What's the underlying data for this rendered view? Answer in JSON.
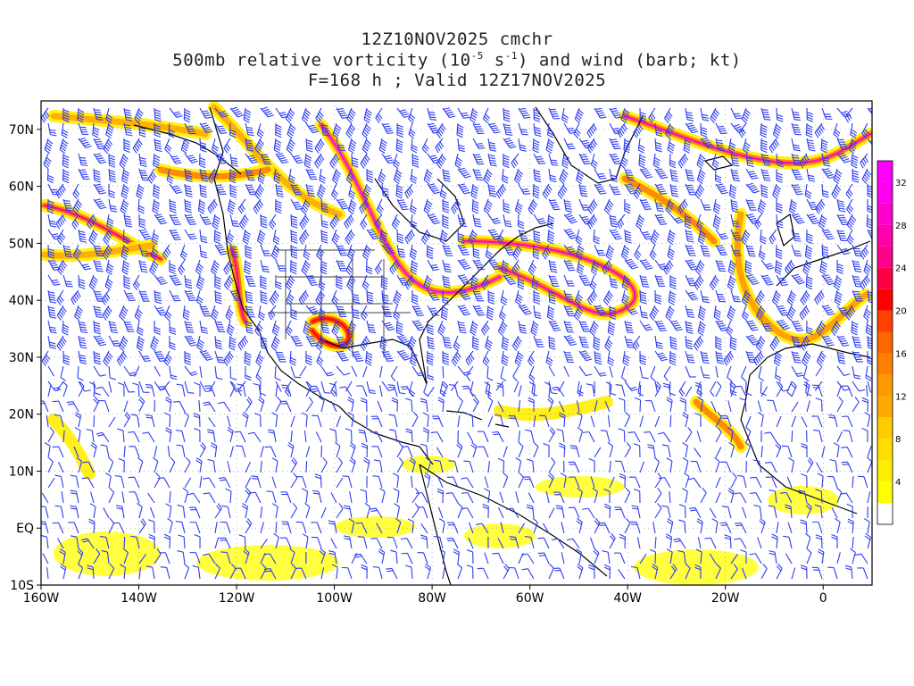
{
  "title": {
    "line1": "12Z10NOV2025 cmchr",
    "line2_pre": "500mb relative vorticity (10",
    "line2_exp1": "-5",
    "line2_mid": " s",
    "line2_exp2": "-1",
    "line2_post": ") and wind (barb; kt)",
    "line3": "F=168 h ; Valid 12Z17NOV2025"
  },
  "map": {
    "lon_range": [
      -160,
      10
    ],
    "lat_range": [
      -10,
      75
    ],
    "lat_ticks": [
      {
        "lat": 70,
        "label": "70N"
      },
      {
        "lat": 60,
        "label": "60N"
      },
      {
        "lat": 50,
        "label": "50N"
      },
      {
        "lat": 40,
        "label": "40N"
      },
      {
        "lat": 30,
        "label": "30N"
      },
      {
        "lat": 20,
        "label": "20N"
      },
      {
        "lat": 10,
        "label": "10N"
      },
      {
        "lat": 0,
        "label": "EQ"
      },
      {
        "lat": -10,
        "label": "10S"
      }
    ],
    "lon_ticks": [
      {
        "lon": -160,
        "label": "160W"
      },
      {
        "lon": -140,
        "label": "140W"
      },
      {
        "lon": -120,
        "label": "120W"
      },
      {
        "lon": -100,
        "label": "100W"
      },
      {
        "lon": -80,
        "label": "80W"
      },
      {
        "lon": -60,
        "label": "60W"
      },
      {
        "lon": -40,
        "label": "40W"
      },
      {
        "lon": -20,
        "label": "20W"
      },
      {
        "lon": 0,
        "label": "0"
      }
    ],
    "barb_color": "#2c3cf0",
    "coast_color": "#000000"
  },
  "colorbar": {
    "levels": [
      2,
      4,
      6,
      8,
      10,
      12,
      14,
      16,
      18,
      20,
      22,
      24,
      26,
      28,
      30,
      32,
      34
    ],
    "colors": [
      "#ffffff",
      "#ffff00",
      "#ffee00",
      "#ffdd00",
      "#ffcc00",
      "#ffaa00",
      "#ff9900",
      "#ff8000",
      "#ff6600",
      "#ff4000",
      "#ff0000",
      "#ff0044",
      "#ff0088",
      "#ff00aa",
      "#ff00cc",
      "#ff00ee",
      "#ff00ff"
    ],
    "tick_labels": [
      "4",
      "8",
      "12",
      "16",
      "20",
      "24",
      "28",
      "32"
    ]
  }
}
